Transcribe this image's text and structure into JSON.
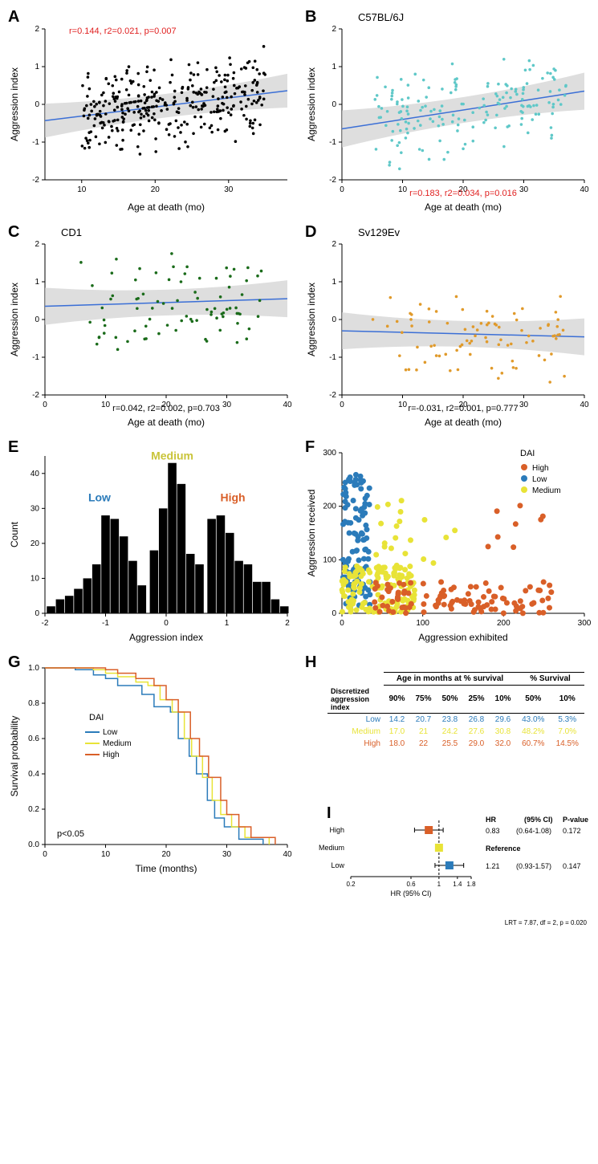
{
  "colors": {
    "low": "#2b7bba",
    "medium": "#e8e337",
    "high": "#d95f28",
    "black": "#000000",
    "teal": "#5fc8c8",
    "green": "#1a6b1a",
    "orange": "#e09a2b",
    "regline": "#3b6fd6",
    "ci": "#d0d0d0",
    "red": "#e02020"
  },
  "panelA": {
    "label": "A",
    "xlabel": "Age at death (mo)",
    "ylabel": "Aggression index",
    "stats": "r=0.144, r2=0.021, p=0.007",
    "stats_color": "#e02020",
    "xlim": [
      5,
      38
    ],
    "ylim": [
      -2,
      2
    ],
    "xticks": [
      10,
      20,
      30
    ],
    "yticks": [
      -2,
      -1,
      0,
      1,
      2
    ]
  },
  "panelB": {
    "label": "B",
    "title": "C57BL/6J",
    "xlabel": "Age at death (mo)",
    "ylabel": "Aggression index",
    "stats": "r=0.183, r2=0.034, p=0.016",
    "stats_color": "#e02020",
    "xlim": [
      0,
      40
    ],
    "ylim": [
      -2,
      2
    ],
    "xticks": [
      0,
      10,
      20,
      30,
      40
    ],
    "yticks": [
      -2,
      -1,
      0,
      1,
      2
    ]
  },
  "panelC": {
    "label": "C",
    "title": "CD1",
    "xlabel": "Age at death (mo)",
    "ylabel": "Aggression index",
    "stats": "r=0.042, r2=0.002, p=0.703",
    "stats_color": "#000000",
    "xlim": [
      0,
      40
    ],
    "ylim": [
      -2,
      2
    ],
    "xticks": [
      0,
      10,
      20,
      30,
      40
    ],
    "yticks": [
      -2,
      -1,
      0,
      1,
      2
    ]
  },
  "panelD": {
    "label": "D",
    "title": "Sv129Ev",
    "xlabel": "Age at death (mo)",
    "ylabel": "Aggression index",
    "stats": "r=-0.031, r2=0.001, p=0.777",
    "stats_color": "#000000",
    "xlim": [
      0,
      40
    ],
    "ylim": [
      -2,
      2
    ],
    "xticks": [
      0,
      10,
      20,
      30,
      40
    ],
    "yticks": [
      -2,
      -1,
      0,
      1,
      2
    ]
  },
  "panelE": {
    "label": "E",
    "xlabel": "Aggression index",
    "ylabel": "Count",
    "labels": {
      "low": "Low",
      "medium": "Medium",
      "high": "High"
    },
    "xlim": [
      -2,
      2
    ],
    "ylim": [
      0,
      45
    ],
    "xticks": [
      -2,
      -1,
      0,
      1,
      2
    ],
    "yticks": [
      0,
      10,
      20,
      30,
      40
    ],
    "bins": [
      {
        "x": -1.9,
        "h": 2
      },
      {
        "x": -1.75,
        "h": 4
      },
      {
        "x": -1.6,
        "h": 5
      },
      {
        "x": -1.45,
        "h": 7
      },
      {
        "x": -1.3,
        "h": 10
      },
      {
        "x": -1.15,
        "h": 14
      },
      {
        "x": -1.0,
        "h": 28
      },
      {
        "x": -0.85,
        "h": 27
      },
      {
        "x": -0.7,
        "h": 22
      },
      {
        "x": -0.55,
        "h": 15
      },
      {
        "x": -0.4,
        "h": 8
      },
      {
        "x": -0.2,
        "h": 18
      },
      {
        "x": -0.05,
        "h": 30
      },
      {
        "x": 0.1,
        "h": 43
      },
      {
        "x": 0.25,
        "h": 37
      },
      {
        "x": 0.4,
        "h": 17
      },
      {
        "x": 0.55,
        "h": 14
      },
      {
        "x": 0.75,
        "h": 27
      },
      {
        "x": 0.9,
        "h": 28
      },
      {
        "x": 1.05,
        "h": 23
      },
      {
        "x": 1.2,
        "h": 15
      },
      {
        "x": 1.35,
        "h": 14
      },
      {
        "x": 1.5,
        "h": 9
      },
      {
        "x": 1.65,
        "h": 9
      },
      {
        "x": 1.8,
        "h": 4
      },
      {
        "x": 1.95,
        "h": 2
      }
    ],
    "bin_width": 0.14
  },
  "panelF": {
    "label": "F",
    "xlabel": "Aggression exhibited",
    "ylabel": "Aggression received",
    "legend_title": "DAI",
    "legend": [
      {
        "l": "High",
        "c": "#d95f28"
      },
      {
        "l": "Low",
        "c": "#2b7bba"
      },
      {
        "l": "Medium",
        "c": "#e8e337"
      }
    ],
    "xlim": [
      0,
      300
    ],
    "ylim": [
      0,
      300
    ],
    "xticks": [
      0,
      100,
      200,
      300
    ],
    "yticks": [
      0,
      100,
      200,
      300
    ]
  },
  "panelG": {
    "label": "G",
    "xlabel": "Time (months)",
    "ylabel": "Survival probability",
    "pval": "p<0.05",
    "legend_title": "DAI",
    "legend": [
      {
        "l": "Low",
        "c": "#2b7bba"
      },
      {
        "l": "Medium",
        "c": "#e8e337"
      },
      {
        "l": "High",
        "c": "#d95f28"
      }
    ],
    "xlim": [
      0,
      40
    ],
    "ylim": [
      0,
      1
    ],
    "xticks": [
      0,
      10,
      20,
      30,
      40
    ],
    "yticks": [
      0.0,
      0.2,
      0.4,
      0.6,
      0.8,
      1.0
    ],
    "curves": {
      "low": [
        [
          0,
          1
        ],
        [
          3,
          1
        ],
        [
          5,
          0.99
        ],
        [
          8,
          0.96
        ],
        [
          10,
          0.94
        ],
        [
          12,
          0.9
        ],
        [
          14.2,
          0.9
        ],
        [
          16,
          0.85
        ],
        [
          18,
          0.78
        ],
        [
          20.7,
          0.75
        ],
        [
          22,
          0.6
        ],
        [
          23.8,
          0.5
        ],
        [
          25,
          0.4
        ],
        [
          26.8,
          0.25
        ],
        [
          28,
          0.15
        ],
        [
          29.6,
          0.1
        ],
        [
          32,
          0.03
        ],
        [
          36,
          0.0
        ]
      ],
      "medium": [
        [
          0,
          1
        ],
        [
          5,
          1
        ],
        [
          8,
          0.99
        ],
        [
          10,
          0.97
        ],
        [
          12,
          0.95
        ],
        [
          15,
          0.92
        ],
        [
          17,
          0.9
        ],
        [
          19,
          0.82
        ],
        [
          21,
          0.75
        ],
        [
          23,
          0.6
        ],
        [
          24.2,
          0.5
        ],
        [
          26,
          0.38
        ],
        [
          27.6,
          0.25
        ],
        [
          29,
          0.17
        ],
        [
          30.8,
          0.1
        ],
        [
          33,
          0.04
        ],
        [
          37,
          0.0
        ]
      ],
      "high": [
        [
          0,
          1
        ],
        [
          5,
          1
        ],
        [
          8,
          1
        ],
        [
          10,
          0.99
        ],
        [
          12,
          0.97
        ],
        [
          15,
          0.94
        ],
        [
          18,
          0.9
        ],
        [
          20,
          0.82
        ],
        [
          22,
          0.75
        ],
        [
          24,
          0.6
        ],
        [
          25.5,
          0.5
        ],
        [
          27,
          0.38
        ],
        [
          29,
          0.25
        ],
        [
          30,
          0.17
        ],
        [
          32,
          0.1
        ],
        [
          34,
          0.04
        ],
        [
          38,
          0.0
        ]
      ]
    }
  },
  "panelH": {
    "label": "H",
    "header1": "Age in months at % survival",
    "header2": "% Survival",
    "rowhead": "Discretized aggression index",
    "cols1": [
      "90%",
      "75%",
      "50%",
      "25%",
      "10%"
    ],
    "cols2": [
      "50%",
      "10%"
    ],
    "rows": [
      {
        "name": "Low",
        "c": "#2b7bba",
        "v": [
          "14.2",
          "20.7",
          "23.8",
          "26.8",
          "29.6",
          "43.0%",
          "5.3%"
        ]
      },
      {
        "name": "Medium",
        "c": "#e8e337",
        "v": [
          "17.0",
          "21",
          "24.2",
          "27.6",
          "30.8",
          "48.2%",
          "7.0%"
        ]
      },
      {
        "name": "High",
        "c": "#d95f28",
        "v": [
          "18.0",
          "22",
          "25.5",
          "29.0",
          "32.0",
          "60.7%",
          "14.5%"
        ]
      }
    ]
  },
  "panelI": {
    "label": "I",
    "xlabel": "HR (95% CI)",
    "xlim": [
      0.2,
      1.8
    ],
    "xticks": [
      0.2,
      0.6,
      1,
      1.4,
      1.8
    ],
    "rows": [
      {
        "name": "High",
        "c": "#d95f28",
        "hr": 0.83,
        "lo": 0.64,
        "hi": 1.08,
        "hr_s": "0.83",
        "ci": "(0.64-1.08)",
        "p": "0.172"
      },
      {
        "name": "Medium",
        "c": "#e8e337",
        "hr": 1.0,
        "lo": 1.0,
        "hi": 1.0,
        "hr_s": "Reference",
        "ci": "",
        "p": ""
      },
      {
        "name": "Low",
        "c": "#2b7bba",
        "hr": 1.21,
        "lo": 0.93,
        "hi": 1.57,
        "hr_s": "1.21",
        "ci": "(0.93-1.57)",
        "p": "0.147"
      }
    ],
    "table_headers": [
      "HR",
      "(95% CI)",
      "P-value"
    ],
    "footnote": "LRT = 7.87, df = 2, p = 0.020"
  }
}
